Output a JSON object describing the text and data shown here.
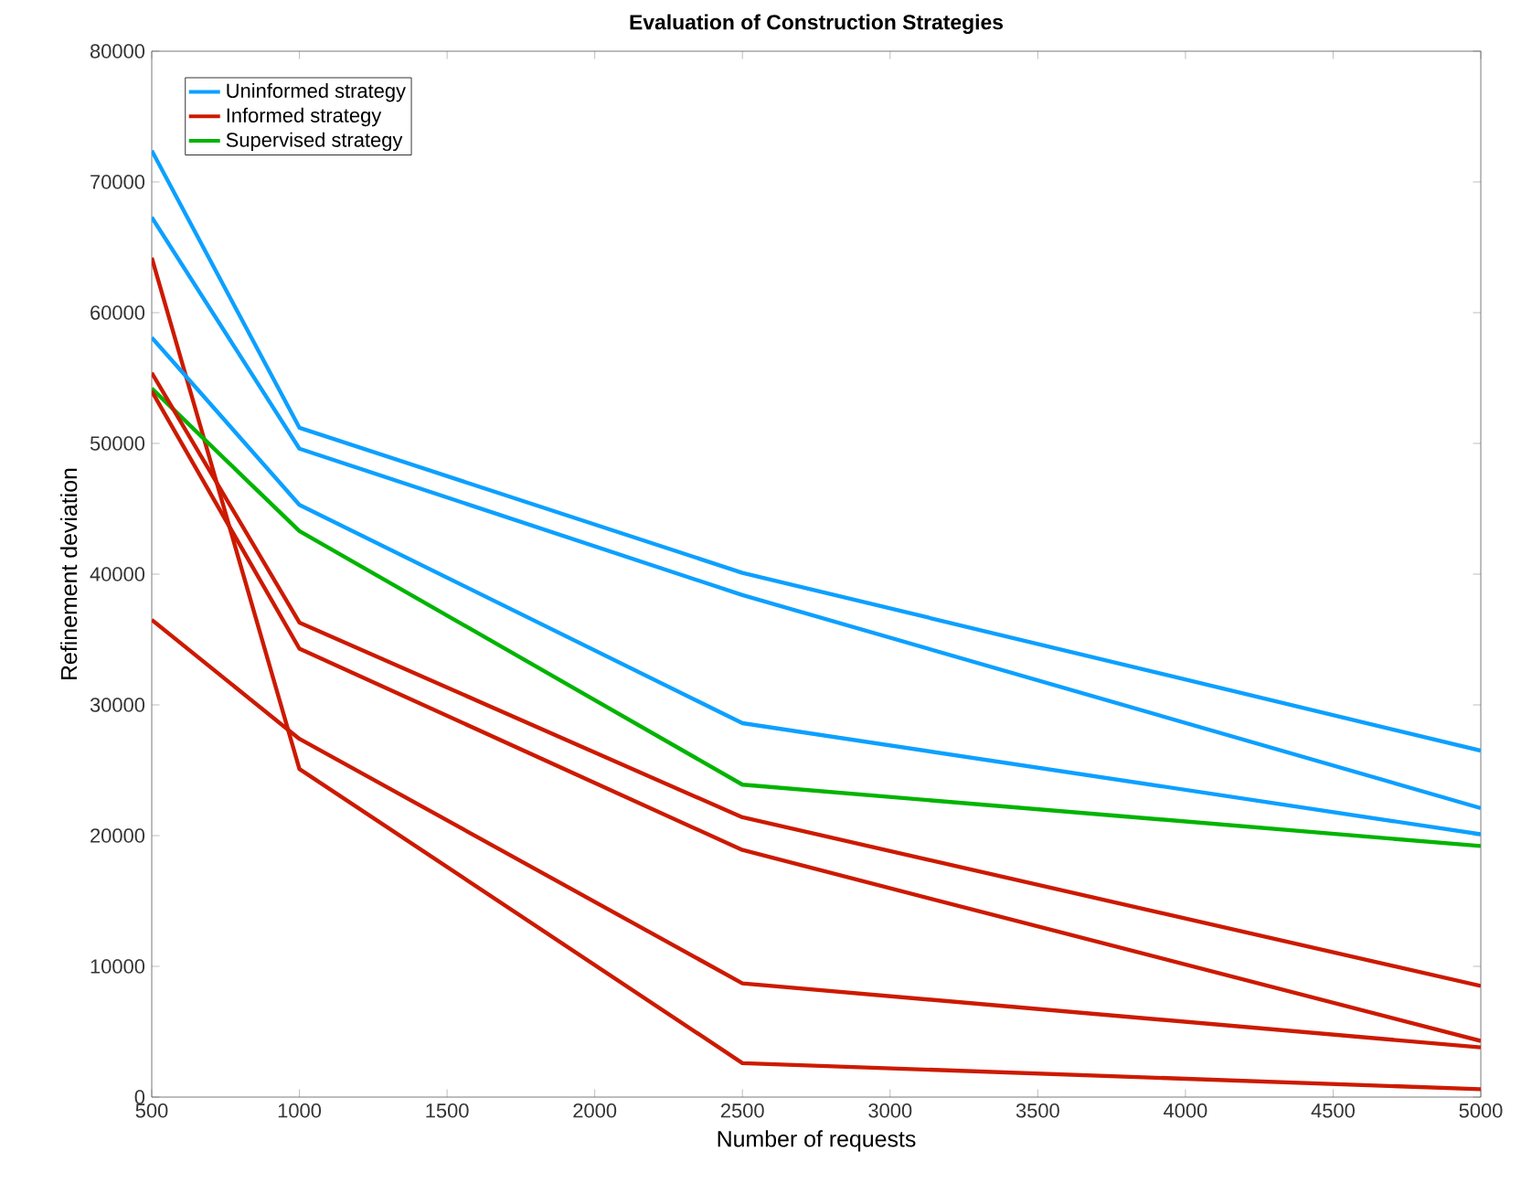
{
  "chart_data": {
    "type": "line",
    "title": "Evaluation of Construction Strategies",
    "xlabel": "Number of requests",
    "ylabel": "Refinement deviation",
    "x": [
      500,
      1000,
      2500,
      5000
    ],
    "series": [
      {
        "name": "Uninformed strategy",
        "color": "#0ca0ff",
        "values": [
          72400,
          51200,
          40100,
          26500
        ]
      },
      {
        "name": "Informed strategy",
        "color": "#cc1a00",
        "values": [
          64200,
          25100,
          2600,
          600
        ]
      },
      {
        "name": "Supervised strategy",
        "color": "#00b400",
        "values": [
          54200,
          43300,
          23900,
          19200
        ]
      },
      {
        "color": "#0ca0ff",
        "values": [
          67300,
          49600,
          38400,
          22100
        ]
      },
      {
        "color": "#0ca0ff",
        "values": [
          58100,
          45300,
          28600,
          20100
        ]
      },
      {
        "color": "#cc1a00",
        "values": [
          55400,
          36300,
          21400,
          8500
        ]
      },
      {
        "color": "#cc1a00",
        "values": [
          54000,
          34300,
          18900,
          4300
        ]
      },
      {
        "color": "#cc1a00",
        "values": [
          36500,
          27400,
          8700,
          3800
        ]
      }
    ],
    "xlim": [
      500,
      5000
    ],
    "ylim": [
      0,
      80000
    ],
    "xticks": [
      500,
      1000,
      1500,
      2000,
      2500,
      3000,
      3500,
      4000,
      4500,
      5000
    ],
    "yticks": [
      0,
      10000,
      20000,
      30000,
      40000,
      50000,
      60000,
      70000,
      80000
    ],
    "grid": false,
    "legend": "top left",
    "marker": "none",
    "line_style": "solid"
  }
}
